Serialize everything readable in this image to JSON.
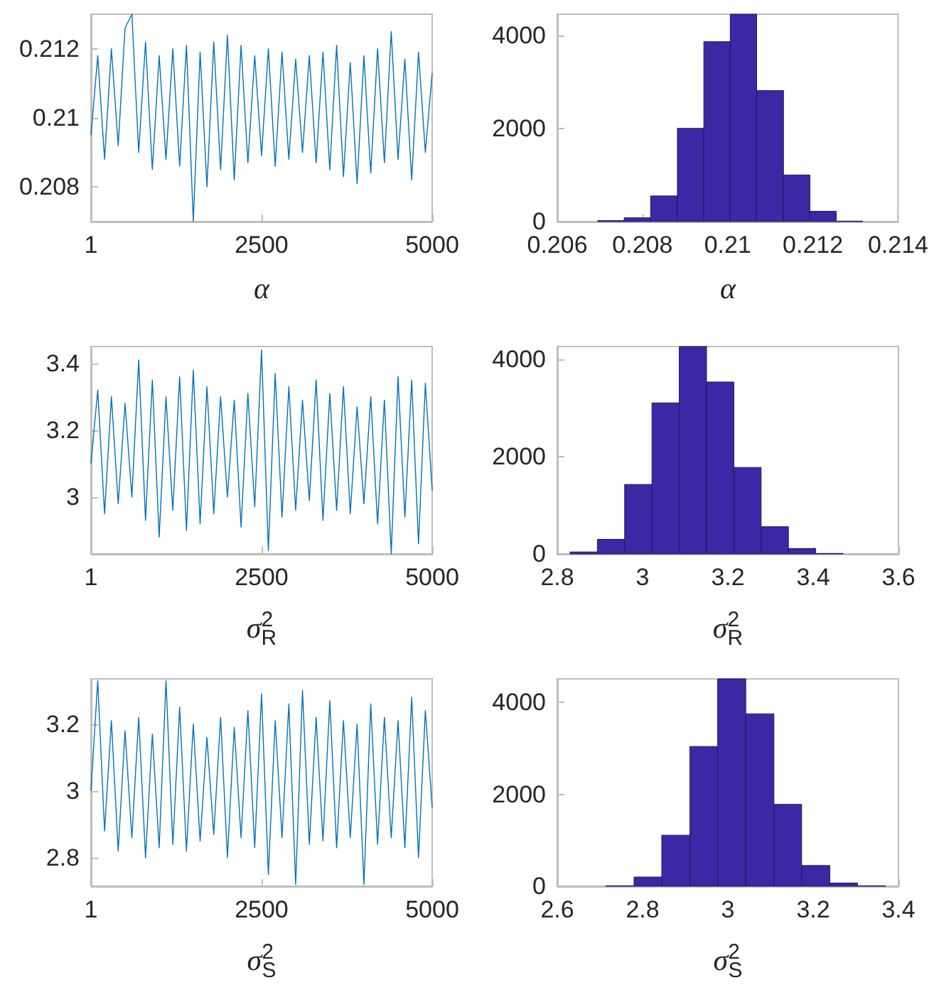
{
  "chart_data": [
    {
      "type": "line",
      "xlabel": "α",
      "color": "#0072bd",
      "x": [
        1,
        100,
        200,
        300,
        400,
        500,
        600,
        700,
        800,
        900,
        1000,
        1100,
        1200,
        1300,
        1400,
        1500,
        1600,
        1700,
        1800,
        1900,
        2000,
        2100,
        2200,
        2300,
        2400,
        2500,
        2600,
        2700,
        2800,
        2900,
        3000,
        3100,
        3200,
        3300,
        3400,
        3500,
        3600,
        3700,
        3800,
        3900,
        4000,
        4100,
        4200,
        4300,
        4400,
        4500,
        4600,
        4700,
        4800,
        4900,
        5000
      ],
      "values": [
        0.2095,
        0.2118,
        0.2088,
        0.212,
        0.2092,
        0.2126,
        0.213,
        0.209,
        0.2122,
        0.2085,
        0.2118,
        0.2088,
        0.212,
        0.2086,
        0.2121,
        0.207,
        0.2119,
        0.208,
        0.2122,
        0.2085,
        0.2124,
        0.2082,
        0.2121,
        0.2087,
        0.2118,
        0.2089,
        0.212,
        0.2086,
        0.2119,
        0.2088,
        0.2117,
        0.209,
        0.2118,
        0.2087,
        0.2119,
        0.2085,
        0.2121,
        0.2083,
        0.2116,
        0.2081,
        0.2118,
        0.2084,
        0.212,
        0.2087,
        0.2125,
        0.2088,
        0.2117,
        0.2082,
        0.2119,
        0.209,
        0.2113
      ],
      "xlim": [
        1,
        5000
      ],
      "xticks": [
        1,
        2500,
        5000
      ],
      "ylim": [
        0.207,
        0.213
      ],
      "yticks": [
        0.208,
        0.21,
        0.212
      ]
    },
    {
      "type": "histogram",
      "xlabel": "α",
      "color": "#3c28a4",
      "bins": [
        0.20695,
        0.20757,
        0.20819,
        0.20882,
        0.20944,
        0.21006,
        0.21068,
        0.21131,
        0.21193,
        0.21255,
        0.21317
      ],
      "values": [
        20,
        80,
        550,
        2000,
        3860,
        4450,
        2810,
        1000,
        220,
        10
      ],
      "xlim": [
        0.206,
        0.214
      ],
      "xticks": [
        0.206,
        0.208,
        0.21,
        0.212,
        0.214
      ],
      "ylim": [
        0,
        4450
      ],
      "yticks": [
        0,
        2000,
        4000
      ]
    },
    {
      "type": "line",
      "xlabel": "σ$^{2}$$_{R}$",
      "color": "#0072bd",
      "x": [
        1,
        100,
        200,
        300,
        400,
        500,
        600,
        700,
        800,
        900,
        1000,
        1100,
        1200,
        1300,
        1400,
        1500,
        1600,
        1700,
        1800,
        1900,
        2000,
        2100,
        2200,
        2300,
        2400,
        2500,
        2600,
        2700,
        2800,
        2900,
        3000,
        3100,
        3200,
        3300,
        3400,
        3500,
        3600,
        3700,
        3800,
        3900,
        4000,
        4100,
        4200,
        4300,
        4400,
        4500,
        4600,
        4700,
        4800,
        4900,
        5000
      ],
      "values": [
        3.1,
        3.32,
        2.95,
        3.3,
        2.98,
        3.28,
        3.0,
        3.41,
        2.93,
        3.35,
        2.88,
        3.3,
        2.96,
        3.36,
        2.9,
        3.38,
        2.92,
        3.33,
        2.95,
        3.3,
        3.0,
        3.29,
        2.91,
        3.31,
        2.97,
        3.44,
        2.84,
        3.37,
        2.94,
        3.33,
        2.96,
        3.29,
        2.99,
        3.35,
        2.93,
        3.31,
        2.96,
        3.33,
        2.95,
        3.27,
        2.98,
        3.3,
        2.92,
        3.29,
        2.83,
        3.36,
        2.94,
        3.35,
        2.86,
        3.34,
        3.02
      ],
      "xlim": [
        1,
        5000
      ],
      "xticks": [
        1,
        2500,
        5000
      ],
      "ylim": [
        2.83,
        3.45
      ],
      "yticks": [
        3,
        3.2,
        3.4
      ]
    },
    {
      "type": "histogram",
      "xlabel": "σ$^{2}$$_{R}$",
      "color": "#3c28a4",
      "bins": [
        2.83,
        2.894,
        2.958,
        3.022,
        3.086,
        3.15,
        3.214,
        3.278,
        3.342,
        3.406,
        3.47
      ],
      "values": [
        40,
        300,
        1430,
        3110,
        4270,
        3540,
        1780,
        560,
        110,
        10
      ],
      "xlim": [
        2.8,
        3.6
      ],
      "xticks": [
        2.8,
        3,
        3.2,
        3.4,
        3.6
      ],
      "ylim": [
        0,
        4270
      ],
      "yticks": [
        0,
        2000,
        4000
      ]
    },
    {
      "type": "line",
      "xlabel": "σ$^{2}$$_{S}$",
      "color": "#0072bd",
      "x": [
        1,
        100,
        200,
        300,
        400,
        500,
        600,
        700,
        800,
        900,
        1000,
        1100,
        1200,
        1300,
        1400,
        1500,
        1600,
        1700,
        1800,
        1900,
        2000,
        2100,
        2200,
        2300,
        2400,
        2500,
        2600,
        2700,
        2800,
        2900,
        3000,
        3100,
        3200,
        3300,
        3400,
        3500,
        3600,
        3700,
        3800,
        3900,
        4000,
        4100,
        4200,
        4300,
        4400,
        4500,
        4600,
        4700,
        4800,
        4900,
        5000
      ],
      "values": [
        3.0,
        3.33,
        2.88,
        3.21,
        2.82,
        3.18,
        2.86,
        3.22,
        2.8,
        3.17,
        2.83,
        3.33,
        2.84,
        3.25,
        2.82,
        3.2,
        2.85,
        3.16,
        2.87,
        3.22,
        2.8,
        3.19,
        2.86,
        3.24,
        2.83,
        3.29,
        2.75,
        3.21,
        2.86,
        3.26,
        2.72,
        3.3,
        2.84,
        3.22,
        2.85,
        3.27,
        2.83,
        3.21,
        2.86,
        3.2,
        2.72,
        3.26,
        2.84,
        3.22,
        2.86,
        3.21,
        2.83,
        3.28,
        2.8,
        3.24,
        2.95
      ],
      "xlim": [
        1,
        5000
      ],
      "xticks": [
        1,
        2500,
        5000
      ],
      "ylim": [
        2.715,
        3.335
      ],
      "yticks": [
        2.8,
        3,
        3.2
      ]
    },
    {
      "type": "histogram",
      "xlabel": "σ$^{2}$$_{S}$",
      "color": "#3c28a4",
      "bins": [
        2.714,
        2.78,
        2.845,
        2.911,
        2.976,
        3.042,
        3.108,
        3.173,
        3.239,
        3.304,
        3.37
      ],
      "values": [
        10,
        200,
        1110,
        3040,
        4510,
        3750,
        1780,
        450,
        70,
        10
      ],
      "xlim": [
        2.6,
        3.4
      ],
      "xticks": [
        2.6,
        2.8,
        3,
        3.2,
        3.4
      ],
      "ylim": [
        0,
        4510
      ],
      "yticks": [
        0,
        2000,
        4000
      ]
    }
  ]
}
